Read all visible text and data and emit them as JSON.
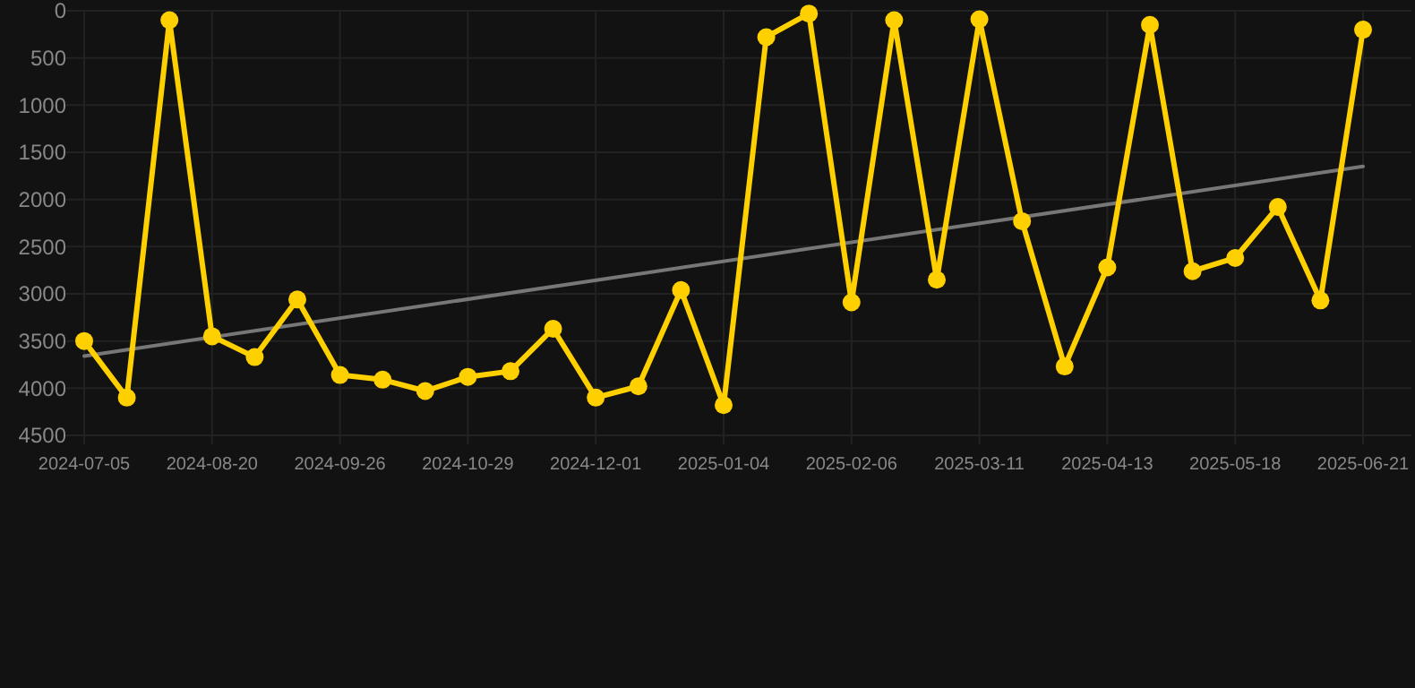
{
  "chart_data": {
    "type": "line",
    "categories": [
      "2024-07-05",
      null,
      null,
      "2024-08-20",
      null,
      null,
      "2024-09-26",
      null,
      null,
      "2024-10-29",
      null,
      null,
      "2024-12-01",
      null,
      null,
      "2025-01-04",
      null,
      null,
      "2025-02-06",
      null,
      null,
      "2025-03-11",
      null,
      null,
      "2025-04-13",
      null,
      null,
      "2025-05-18",
      null,
      null,
      "2025-06-21"
    ],
    "series": [
      {
        "color": "#ffd000",
        "values": [
          3500,
          4100,
          100,
          3450,
          3670,
          3060,
          3860,
          3910,
          4030,
          3880,
          3820,
          3370,
          4100,
          3980,
          2960,
          4180,
          280,
          30,
          3090,
          100,
          2850,
          90,
          2230,
          3770,
          2720,
          150,
          2760,
          2620,
          2080,
          3070,
          200
        ],
        "marker": "circle"
      },
      {
        "color": "#777777",
        "values": [
          3660,
          null,
          null,
          null,
          null,
          null,
          null,
          null,
          null,
          null,
          null,
          null,
          null,
          null,
          null,
          null,
          null,
          null,
          null,
          null,
          null,
          null,
          null,
          null,
          null,
          null,
          null,
          null,
          null,
          null,
          1650
        ],
        "marker": "none"
      }
    ],
    "ylim": [
      4500,
      0
    ],
    "yticks": [
      0,
      500,
      1000,
      1500,
      2000,
      2500,
      3000,
      3500,
      4000,
      4500
    ],
    "grid": true
  }
}
